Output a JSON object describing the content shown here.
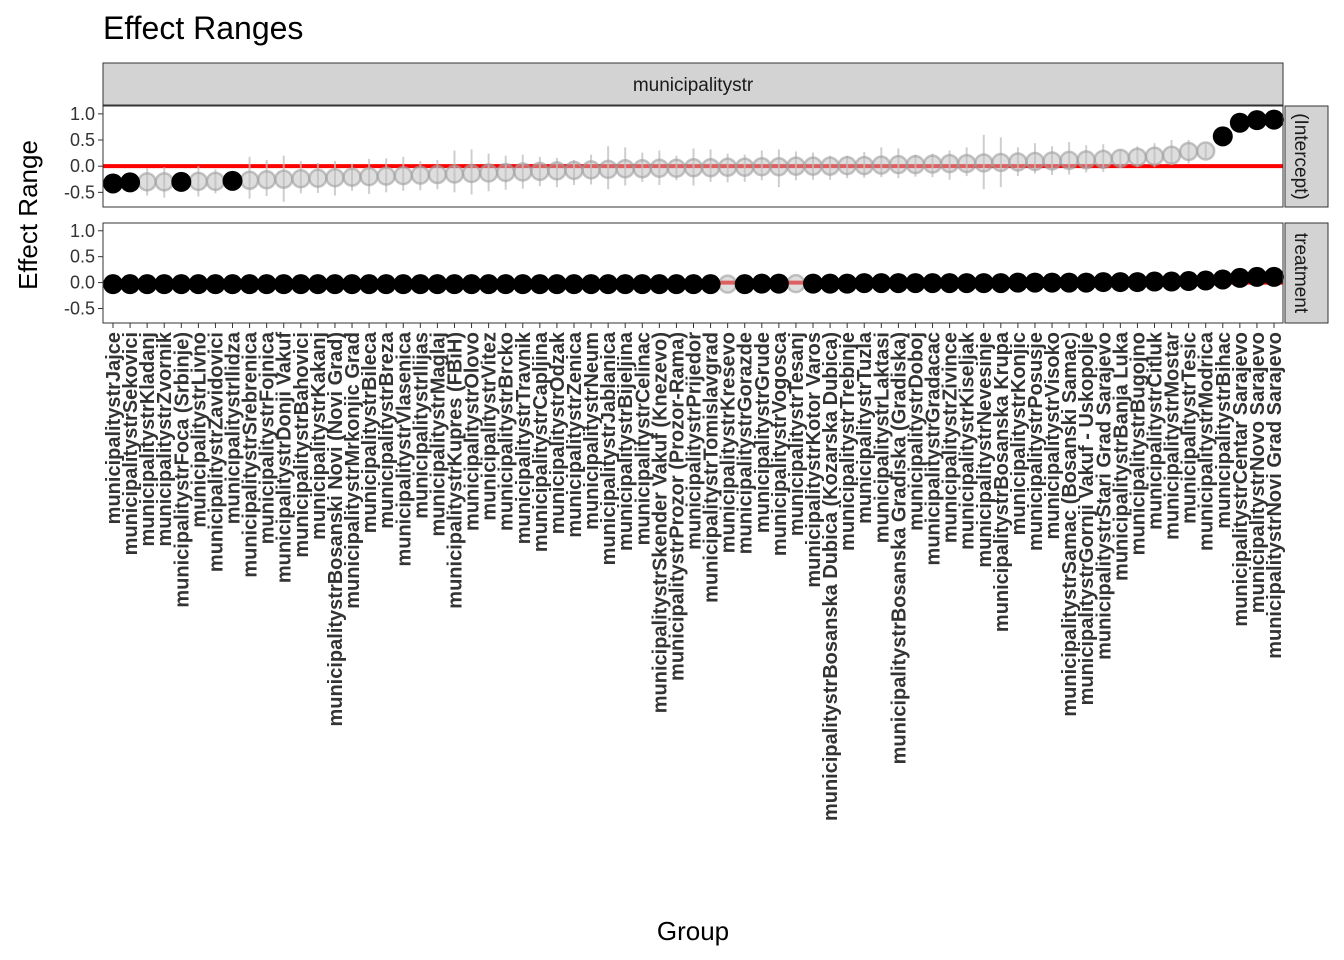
{
  "colors": {
    "zero_line": "#ff0000",
    "significant": "#000000",
    "non_significant": "#bdbdbd",
    "strip_fill": "#d3d3d3"
  },
  "chart_data": {
    "type": "scatter",
    "title": "Effect Ranges",
    "xlabel": "Group",
    "ylabel": "Effect Range",
    "facet_column": "municipalitystr",
    "panel_labels": [
      "(Intercept)",
      "treatment"
    ],
    "ylim": [
      -0.78,
      1.15
    ],
    "yticks": [
      1.0,
      0.5,
      0.0,
      -0.5
    ],
    "ytick_labels": [
      "1.0",
      "0.5",
      "0.0",
      "-0.5"
    ],
    "reference_line": 0,
    "categories": [
      "municipalitystrJajce",
      "municipalitystrSekovici",
      "municipalitystrKladanj",
      "municipalitystrZvornik",
      "municipalitystrFoca (Srbinje)",
      "municipalitystrLivno",
      "municipalitystrZavidovici",
      "municipalitystrIlidza",
      "municipalitystrSrebrenica",
      "municipalitystrFojnica",
      "municipalitystrDonji Vakuf",
      "municipalitystrBahovici",
      "municipalitystrKakanj",
      "municipalitystrBosanski Novi (Novi Grad)",
      "municipalitystrMrkonjic Grad",
      "municipalitystrBileca",
      "municipalitystrBreza",
      "municipalitystrVlasenica",
      "municipalitystrIlijas",
      "municipalitystrMaglaj",
      "municipalitystrKupres (FBiH)",
      "municipalitystrOlovo",
      "municipalitystrVitez",
      "municipalitystrBrcko",
      "municipalitystrTravnik",
      "municipalitystrCapljina",
      "municipalitystrOdzak",
      "municipalitystrZenica",
      "municipalitystrNeum",
      "municipalitystrJablanica",
      "municipalitystrBijeljina",
      "municipalitystrCelinac",
      "municipalitystrSkender Vakuf (Knezevo)",
      "municipalitystrProzor (Prozor-Rama)",
      "municipalitystrPrijedor",
      "municipalitystrTomislavgrad",
      "municipalitystrKresevo",
      "municipalitystrGorazde",
      "municipalitystrGrude",
      "municipalitystrVogosca",
      "municipalitystrTesanj",
      "municipalitystrKotor Varos",
      "municipalitystrBosanska Dubica (Kozarska Dubica)",
      "municipalitystrTrebinje",
      "municipalitystrTuzla",
      "municipalitystrLaktasi",
      "municipalitystrBosanska Gradiska (Gradiska)",
      "municipalitystrDoboj",
      "municipalitystrGradacac",
      "municipalitystrZivince",
      "municipalitystrKiseljak",
      "municipalitystrNevesinje",
      "municipalitystrBosanska Krupa",
      "municipalitystrKonjic",
      "municipalitystrPosusje",
      "municipalitystrVisoko",
      "municipalitystrSamac (Bosanski Samac)",
      "municipalitystrGornji Vakuf - Uskopolje",
      "municipalitystrStari Grad Sarajevo",
      "municipalitystrBanja Luka",
      "municipalitystrBugojno",
      "municipalitystrCitluk",
      "municipalitystrMostar",
      "municipalitystrTesic",
      "municipalitystrModrica",
      "municipalitystrBihac",
      "municipalitystrCentar Sarajevo",
      "municipalitystrNovo Sarajevo",
      "municipalitystrNovi Grad Sarajevo"
    ],
    "series": [
      {
        "name": "(Intercept)",
        "values": [
          -0.33,
          -0.31,
          -0.3,
          -0.3,
          -0.3,
          -0.29,
          -0.29,
          -0.28,
          -0.27,
          -0.26,
          -0.25,
          -0.24,
          -0.23,
          -0.22,
          -0.21,
          -0.2,
          -0.19,
          -0.18,
          -0.17,
          -0.16,
          -0.15,
          -0.14,
          -0.13,
          -0.12,
          -0.11,
          -0.1,
          -0.09,
          -0.08,
          -0.07,
          -0.06,
          -0.05,
          -0.05,
          -0.04,
          -0.04,
          -0.03,
          -0.03,
          -0.02,
          -0.02,
          -0.01,
          -0.01,
          0.0,
          0.0,
          0.0,
          0.01,
          0.01,
          0.02,
          0.03,
          0.03,
          0.04,
          0.05,
          0.05,
          0.06,
          0.07,
          0.08,
          0.09,
          0.1,
          0.11,
          0.12,
          0.13,
          0.15,
          0.17,
          0.19,
          0.21,
          0.28,
          0.29,
          0.57,
          0.83,
          0.88,
          0.89
        ],
        "lower": [
          -0.62,
          -0.6,
          -0.56,
          -0.6,
          -0.68,
          -0.58,
          -0.52,
          -0.68,
          -0.62,
          -0.57,
          -0.68,
          -0.52,
          -0.51,
          -0.56,
          -0.47,
          -0.53,
          -0.5,
          -0.47,
          -0.46,
          -0.44,
          -0.5,
          -0.54,
          -0.48,
          -0.45,
          -0.43,
          -0.38,
          -0.4,
          -0.36,
          -0.35,
          -0.44,
          -0.37,
          -0.3,
          -0.36,
          -0.27,
          -0.37,
          -0.3,
          -0.31,
          -0.3,
          -0.27,
          -0.4,
          -0.27,
          -0.26,
          -0.26,
          -0.23,
          -0.22,
          -0.21,
          -0.23,
          -0.2,
          -0.21,
          -0.26,
          -0.19,
          -0.44,
          -0.4,
          -0.19,
          -0.14,
          -0.17,
          -0.16,
          -0.12,
          -0.11,
          -0.04,
          -0.02,
          -0.02,
          0.02,
          0.05,
          0.16,
          0.57,
          0.83,
          0.88,
          0.89
        ],
        "upper": [
          -0.05,
          -0.03,
          -0.04,
          -0.02,
          0.08,
          0.0,
          -0.06,
          0.22,
          0.18,
          0.12,
          0.2,
          0.1,
          0.06,
          0.1,
          0.05,
          0.14,
          0.15,
          0.18,
          0.1,
          0.12,
          0.3,
          0.32,
          0.24,
          0.2,
          0.22,
          0.18,
          0.16,
          0.12,
          0.22,
          0.38,
          0.36,
          0.26,
          0.3,
          0.2,
          0.34,
          0.32,
          0.24,
          0.22,
          0.3,
          0.32,
          0.28,
          0.26,
          0.2,
          0.2,
          0.27,
          0.36,
          0.34,
          0.22,
          0.24,
          0.3,
          0.36,
          0.6,
          0.55,
          0.36,
          0.44,
          0.38,
          0.46,
          0.4,
          0.42,
          0.32,
          0.38,
          0.44,
          0.5,
          0.5,
          0.42,
          0.57,
          0.83,
          0.88,
          0.89
        ],
        "significant": [
          true,
          true,
          false,
          false,
          true,
          false,
          false,
          true,
          false,
          false,
          false,
          false,
          false,
          false,
          false,
          false,
          false,
          false,
          false,
          false,
          false,
          false,
          false,
          false,
          false,
          false,
          false,
          false,
          false,
          false,
          false,
          false,
          false,
          false,
          false,
          false,
          false,
          false,
          false,
          false,
          false,
          false,
          false,
          false,
          false,
          false,
          false,
          false,
          false,
          false,
          false,
          false,
          false,
          false,
          false,
          false,
          false,
          false,
          false,
          false,
          false,
          false,
          false,
          false,
          false,
          true,
          true,
          true,
          true
        ]
      },
      {
        "name": "treatment",
        "values": [
          -0.03,
          -0.03,
          -0.03,
          -0.03,
          -0.03,
          -0.03,
          -0.03,
          -0.03,
          -0.03,
          -0.03,
          -0.03,
          -0.03,
          -0.03,
          -0.03,
          -0.03,
          -0.03,
          -0.03,
          -0.03,
          -0.03,
          -0.03,
          -0.03,
          -0.03,
          -0.03,
          -0.03,
          -0.03,
          -0.03,
          -0.03,
          -0.03,
          -0.03,
          -0.03,
          -0.03,
          -0.03,
          -0.03,
          -0.03,
          -0.03,
          -0.03,
          -0.03,
          -0.03,
          -0.02,
          -0.02,
          -0.02,
          -0.02,
          -0.02,
          -0.02,
          -0.01,
          -0.01,
          -0.01,
          -0.01,
          -0.01,
          -0.01,
          -0.01,
          -0.01,
          -0.01,
          0.0,
          0.0,
          0.0,
          0.0,
          0.0,
          0.01,
          0.01,
          0.01,
          0.02,
          0.02,
          0.03,
          0.04,
          0.06,
          0.09,
          0.11,
          0.11
        ],
        "significant": [
          true,
          true,
          true,
          true,
          true,
          true,
          true,
          true,
          true,
          true,
          true,
          true,
          true,
          true,
          true,
          true,
          true,
          true,
          true,
          true,
          true,
          true,
          true,
          true,
          true,
          true,
          true,
          true,
          true,
          true,
          true,
          true,
          true,
          true,
          true,
          true,
          false,
          true,
          true,
          true,
          false,
          true,
          true,
          true,
          true,
          true,
          true,
          true,
          true,
          true,
          true,
          true,
          true,
          true,
          true,
          true,
          true,
          true,
          true,
          true,
          true,
          true,
          true,
          true,
          true,
          true,
          true,
          true,
          true
        ]
      }
    ]
  }
}
